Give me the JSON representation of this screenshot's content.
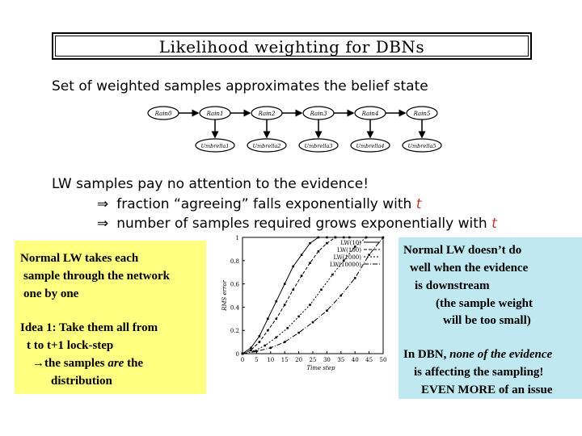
{
  "title": "Likelihood weighting for DBNs",
  "intro": "Set of weighted samples approximates the belief state",
  "dbn": {
    "rain_nodes": [
      "Rain0",
      "Rain1",
      "Rain2",
      "Rain3",
      "Rain4",
      "Rain5"
    ],
    "umbrella_nodes": [
      "Umbrella1",
      "Umbrella2",
      "Umbrella3",
      "Umbrella4",
      "Umbrella5"
    ]
  },
  "lw_heading": "LW samples pay no attention to the evidence!",
  "bullets": [
    {
      "text": "fraction “agreeing” falls exponentially with",
      "var": "t"
    },
    {
      "text": "number of samples required grows exponentially with",
      "var": "t"
    }
  ],
  "implies_symbol": "⇒",
  "yellow_note": {
    "line1": "Normal LW takes each",
    "line2": "sample through the network",
    "line3": "one by one",
    "idea1": "Idea 1: Take them all from",
    "idea2": "t to t+1 lock-step",
    "arrow": "→",
    "idea3_pre": "the samples ",
    "idea3_em": "are",
    "idea3_post": " the",
    "idea4": "distribution"
  },
  "cyan_note": {
    "l1": "Normal LW doesn’t do",
    "l2": "well when the evidence",
    "l3": "is downstream",
    "l4": "(the sample weight",
    "l5": "will be too small)",
    "l6_pre": "In DBN, ",
    "l6_em": "none of the evidence",
    "l7": "is affecting the sampling!",
    "l8": "EVEN MORE of an issue"
  },
  "chart_data": {
    "type": "line",
    "xlabel": "Time step",
    "ylabel": "RMS error",
    "xlim": [
      0,
      50
    ],
    "ylim": [
      0,
      1
    ],
    "xticks": [
      "0",
      "5",
      "10",
      "15",
      "20",
      "25",
      "30",
      "35",
      "40",
      "45",
      "50"
    ],
    "yticks": [
      "0",
      "0.2",
      "0.4",
      "0.6",
      "0.8",
      "1"
    ],
    "series": [
      {
        "name": "LW(10)",
        "x": [
          0,
          3,
          6,
          9,
          12,
          15,
          18,
          21,
          24,
          27,
          30,
          33
        ],
        "y": [
          0,
          0.05,
          0.15,
          0.3,
          0.45,
          0.6,
          0.75,
          0.85,
          0.95,
          1,
          1,
          1
        ]
      },
      {
        "name": "LW(100)",
        "x": [
          0,
          3,
          6,
          9,
          12,
          15,
          18,
          21,
          24,
          27,
          30,
          33,
          36,
          38
        ],
        "y": [
          0,
          0.03,
          0.1,
          0.2,
          0.3,
          0.42,
          0.55,
          0.67,
          0.78,
          0.88,
          0.95,
          1,
          1,
          1
        ]
      },
      {
        "name": "LW(1000)",
        "x": [
          0,
          4,
          8,
          12,
          16,
          20,
          24,
          28,
          32,
          36,
          40,
          44
        ],
        "y": [
          0,
          0.02,
          0.07,
          0.14,
          0.22,
          0.32,
          0.42,
          0.55,
          0.68,
          0.8,
          0.92,
          1
        ]
      },
      {
        "name": "LW(10000)",
        "x": [
          0,
          5,
          10,
          15,
          20,
          25,
          30,
          35,
          40,
          45,
          50
        ],
        "y": [
          0,
          0.02,
          0.05,
          0.1,
          0.18,
          0.27,
          0.37,
          0.5,
          0.65,
          0.85,
          1
        ]
      }
    ]
  }
}
